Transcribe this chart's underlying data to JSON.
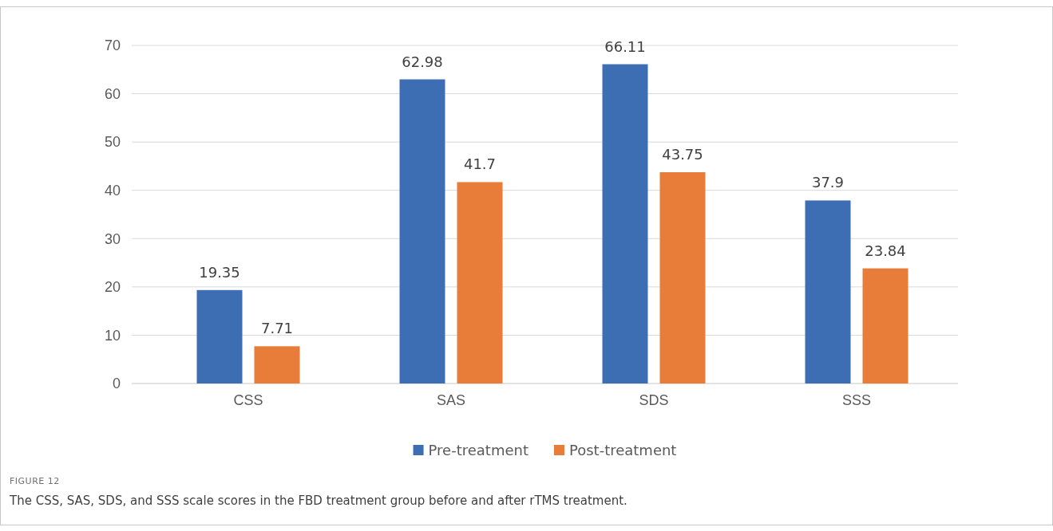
{
  "chart_data": {
    "type": "bar",
    "categories": [
      "CSS",
      "SAS",
      "SDS",
      "SSS"
    ],
    "series": [
      {
        "name": "Pre-treatment",
        "color": "#3d6eb4",
        "values": [
          19.35,
          62.98,
          66.11,
          37.9
        ]
      },
      {
        "name": "Post-treatment",
        "color": "#e87d3a",
        "values": [
          7.71,
          41.7,
          43.75,
          23.84
        ]
      }
    ],
    "ylim": [
      0,
      70
    ],
    "yticks": [
      0,
      10,
      20,
      30,
      40,
      50,
      60,
      70
    ],
    "grid": "y",
    "legend": "bottom",
    "data_labels": true,
    "annotations": [
      "FIGURE 12",
      "The CSS, SAS, SDS, and SSS scale scores in the FBD treatment group before and after rTMS treatment."
    ]
  }
}
